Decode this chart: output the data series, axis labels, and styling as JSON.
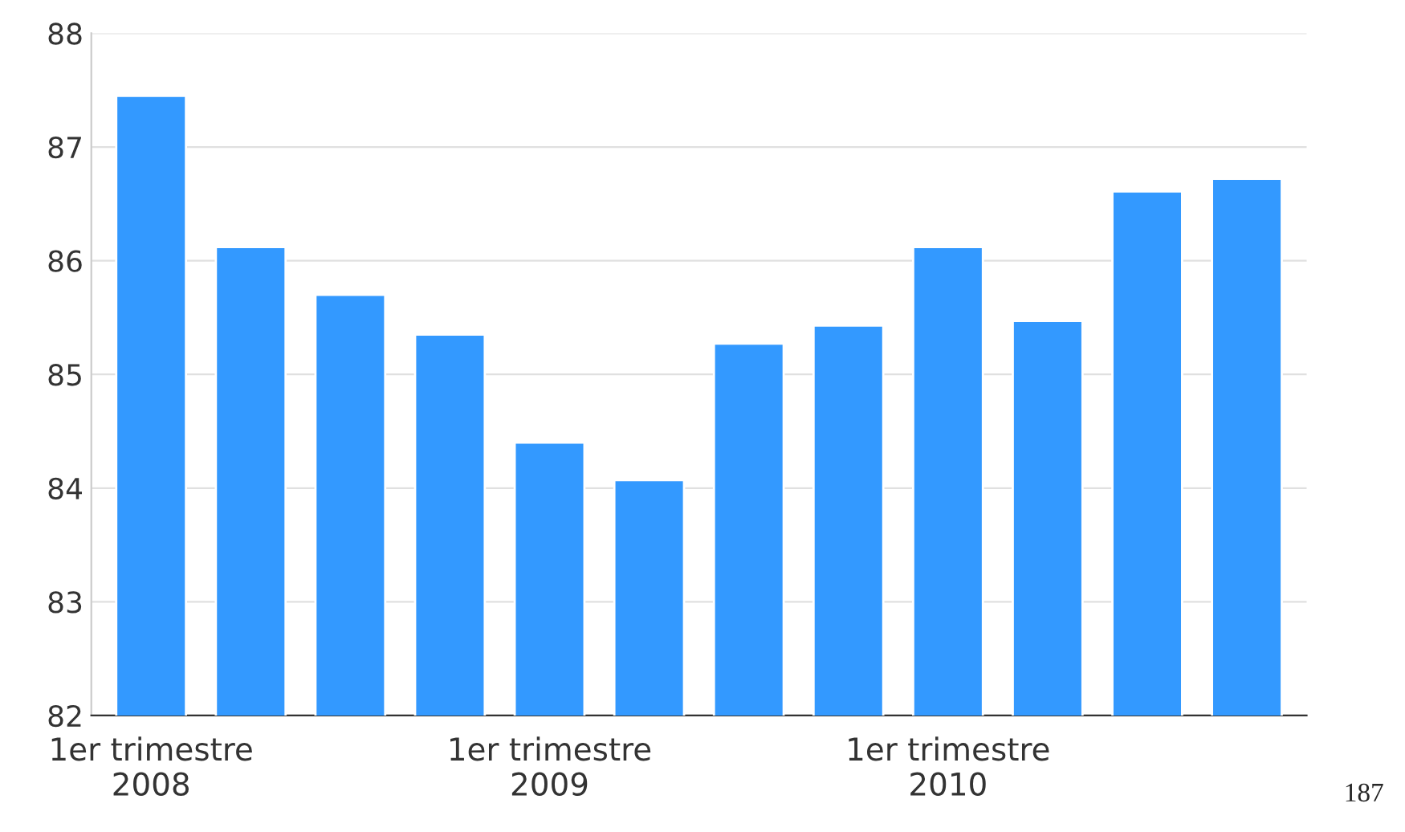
{
  "chart_data": {
    "type": "bar",
    "categories": [
      "1er trimestre\n2008",
      null,
      null,
      null,
      "1er trimestre\n2009",
      null,
      null,
      null,
      "1er trimestre\n2010",
      null,
      null,
      null
    ],
    "values": [
      87.45,
      86.12,
      85.7,
      85.35,
      84.4,
      84.07,
      85.27,
      85.43,
      86.12,
      85.47,
      86.61,
      86.72
    ],
    "color": "#3399ff",
    "ylim": [
      82,
      88
    ],
    "yticks": [
      82,
      83,
      84,
      85,
      86,
      87,
      88
    ],
    "grid": "y",
    "annotations": [
      "187"
    ]
  }
}
